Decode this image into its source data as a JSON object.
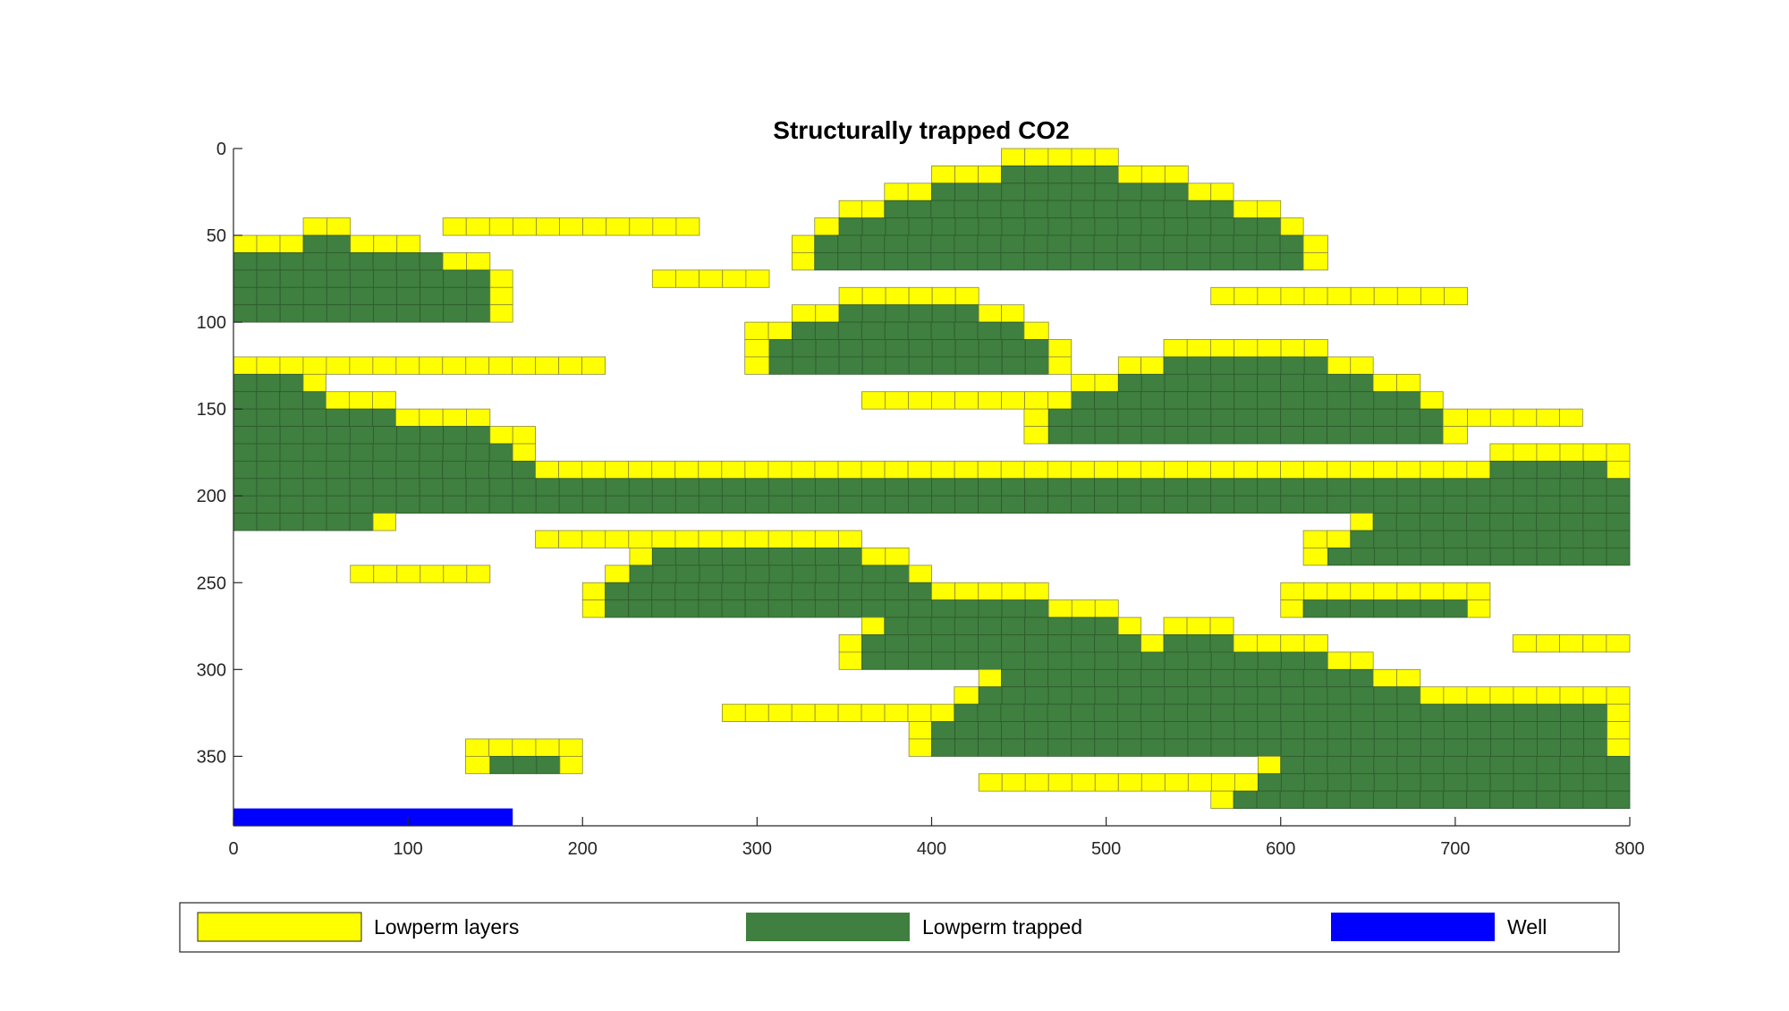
{
  "chart_data": {
    "type": "heatmap",
    "title": "Structurally trapped CO2",
    "xlabel": "",
    "ylabel": "",
    "xlim": [
      0,
      800
    ],
    "ylim": [
      0,
      380
    ],
    "y_reversed": true,
    "x_ticks": [
      0,
      100,
      200,
      300,
      400,
      500,
      600,
      700,
      800
    ],
    "y_ticks": [
      0,
      50,
      100,
      150,
      200,
      250,
      300,
      350
    ],
    "x_tick_labels": [
      "0",
      "100",
      "200",
      "300",
      "400",
      "500",
      "600",
      "700",
      "800"
    ],
    "y_tick_labels": [
      "0",
      "50",
      "100",
      "150",
      "200",
      "250",
      "300",
      "350"
    ],
    "grid": false,
    "legend_position": "bottom",
    "series": [
      {
        "name": "Lowperm layers",
        "color": "#ffff00"
      },
      {
        "name": "Lowperm trapped",
        "color": "#3f7f3f"
      },
      {
        "name": "Well",
        "color": "#0000ff"
      }
    ],
    "well": {
      "x": [
        0,
        160
      ],
      "y": [
        380,
        390
      ]
    },
    "cell_size": {
      "dx": 13.33,
      "dy": 10
    },
    "regions": [
      {
        "kind": "yellow",
        "x0": 440,
        "x1": 507,
        "y0": 0,
        "y1": 10
      },
      {
        "kind": "yellow",
        "x0": 400,
        "x1": 440,
        "y0": 10,
        "y1": 20
      },
      {
        "kind": "green",
        "x0": 440,
        "x1": 507,
        "y0": 10,
        "y1": 20
      },
      {
        "kind": "yellow",
        "x0": 507,
        "x1": 547,
        "y0": 10,
        "y1": 20
      },
      {
        "kind": "yellow",
        "x0": 373,
        "x1": 400,
        "y0": 20,
        "y1": 30
      },
      {
        "kind": "green",
        "x0": 400,
        "x1": 547,
        "y0": 20,
        "y1": 30
      },
      {
        "kind": "yellow",
        "x0": 547,
        "x1": 573,
        "y0": 20,
        "y1": 30
      },
      {
        "kind": "yellow",
        "x0": 347,
        "x1": 373,
        "y0": 30,
        "y1": 40
      },
      {
        "kind": "green",
        "x0": 373,
        "x1": 573,
        "y0": 30,
        "y1": 40
      },
      {
        "kind": "yellow",
        "x0": 573,
        "x1": 600,
        "y0": 30,
        "y1": 40
      },
      {
        "kind": "yellow",
        "x0": 333,
        "x1": 347,
        "y0": 40,
        "y1": 50
      },
      {
        "kind": "green",
        "x0": 347,
        "x1": 600,
        "y0": 40,
        "y1": 50
      },
      {
        "kind": "yellow",
        "x0": 600,
        "x1": 613,
        "y0": 40,
        "y1": 50
      },
      {
        "kind": "yellow",
        "x0": 320,
        "x1": 333,
        "y0": 50,
        "y1": 70
      },
      {
        "kind": "green",
        "x0": 333,
        "x1": 613,
        "y0": 50,
        "y1": 70
      },
      {
        "kind": "yellow",
        "x0": 613,
        "x1": 627,
        "y0": 50,
        "y1": 70
      },
      {
        "kind": "yellow",
        "x0": 40,
        "x1": 67,
        "y0": 40,
        "y1": 50
      },
      {
        "kind": "yellow",
        "x0": 0,
        "x1": 40,
        "y0": 50,
        "y1": 60
      },
      {
        "kind": "green",
        "x0": 40,
        "x1": 67,
        "y0": 50,
        "y1": 60
      },
      {
        "kind": "yellow",
        "x0": 67,
        "x1": 107,
        "y0": 50,
        "y1": 60
      },
      {
        "kind": "green",
        "x0": 0,
        "x1": 120,
        "y0": 60,
        "y1": 70
      },
      {
        "kind": "yellow",
        "x0": 120,
        "x1": 147,
        "y0": 60,
        "y1": 70
      },
      {
        "kind": "green",
        "x0": 0,
        "x1": 147,
        "y0": 70,
        "y1": 100
      },
      {
        "kind": "yellow",
        "x0": 147,
        "x1": 160,
        "y0": 70,
        "y1": 100
      },
      {
        "kind": "yellow",
        "x0": 120,
        "x1": 267,
        "y0": 40,
        "y1": 50
      },
      {
        "kind": "yellow",
        "x0": 240,
        "x1": 307,
        "y0": 70,
        "y1": 80
      },
      {
        "kind": "yellow",
        "x0": 560,
        "x1": 707,
        "y0": 80,
        "y1": 90
      },
      {
        "kind": "yellow",
        "x0": 347,
        "x1": 427,
        "y0": 80,
        "y1": 90
      },
      {
        "kind": "yellow",
        "x0": 320,
        "x1": 347,
        "y0": 90,
        "y1": 100
      },
      {
        "kind": "green",
        "x0": 347,
        "x1": 427,
        "y0": 90,
        "y1": 100
      },
      {
        "kind": "yellow",
        "x0": 427,
        "x1": 453,
        "y0": 90,
        "y1": 100
      },
      {
        "kind": "yellow",
        "x0": 293,
        "x1": 320,
        "y0": 100,
        "y1": 110
      },
      {
        "kind": "green",
        "x0": 320,
        "x1": 453,
        "y0": 100,
        "y1": 110
      },
      {
        "kind": "yellow",
        "x0": 453,
        "x1": 467,
        "y0": 100,
        "y1": 110
      },
      {
        "kind": "yellow",
        "x0": 293,
        "x1": 307,
        "y0": 110,
        "y1": 130
      },
      {
        "kind": "green",
        "x0": 307,
        "x1": 467,
        "y0": 110,
        "y1": 130
      },
      {
        "kind": "yellow",
        "x0": 467,
        "x1": 480,
        "y0": 110,
        "y1": 130
      },
      {
        "kind": "yellow",
        "x0": 0,
        "x1": 213,
        "y0": 120,
        "y1": 130
      },
      {
        "kind": "yellow",
        "x0": 533,
        "x1": 627,
        "y0": 110,
        "y1": 120
      },
      {
        "kind": "yellow",
        "x0": 507,
        "x1": 533,
        "y0": 120,
        "y1": 130
      },
      {
        "kind": "green",
        "x0": 533,
        "x1": 627,
        "y0": 120,
        "y1": 130
      },
      {
        "kind": "yellow",
        "x0": 627,
        "x1": 653,
        "y0": 120,
        "y1": 130
      },
      {
        "kind": "yellow",
        "x0": 480,
        "x1": 507,
        "y0": 130,
        "y1": 140
      },
      {
        "kind": "green",
        "x0": 507,
        "x1": 653,
        "y0": 130,
        "y1": 140
      },
      {
        "kind": "yellow",
        "x0": 653,
        "x1": 680,
        "y0": 130,
        "y1": 140
      },
      {
        "kind": "green",
        "x0": 480,
        "x1": 680,
        "y0": 140,
        "y1": 150
      },
      {
        "kind": "yellow",
        "x0": 680,
        "x1": 693,
        "y0": 140,
        "y1": 150
      },
      {
        "kind": "yellow",
        "x0": 360,
        "x1": 480,
        "y0": 140,
        "y1": 150
      },
      {
        "kind": "yellow",
        "x0": 453,
        "x1": 467,
        "y0": 150,
        "y1": 170
      },
      {
        "kind": "green",
        "x0": 467,
        "x1": 693,
        "y0": 150,
        "y1": 170
      },
      {
        "kind": "yellow",
        "x0": 693,
        "x1": 707,
        "y0": 150,
        "y1": 170
      },
      {
        "kind": "yellow",
        "x0": 707,
        "x1": 773,
        "y0": 150,
        "y1": 160
      },
      {
        "kind": "green",
        "x0": 0,
        "x1": 40,
        "y0": 130,
        "y1": 140
      },
      {
        "kind": "yellow",
        "x0": 40,
        "x1": 53,
        "y0": 130,
        "y1": 140
      },
      {
        "kind": "green",
        "x0": 0,
        "x1": 53,
        "y0": 140,
        "y1": 150
      },
      {
        "kind": "yellow",
        "x0": 53,
        "x1": 93,
        "y0": 140,
        "y1": 150
      },
      {
        "kind": "green",
        "x0": 0,
        "x1": 93,
        "y0": 150,
        "y1": 160
      },
      {
        "kind": "yellow",
        "x0": 93,
        "x1": 147,
        "y0": 150,
        "y1": 160
      },
      {
        "kind": "green",
        "x0": 0,
        "x1": 147,
        "y0": 160,
        "y1": 170
      },
      {
        "kind": "yellow",
        "x0": 147,
        "x1": 173,
        "y0": 160,
        "y1": 170
      },
      {
        "kind": "green",
        "x0": 0,
        "x1": 160,
        "y0": 170,
        "y1": 180
      },
      {
        "kind": "yellow",
        "x0": 160,
        "x1": 173,
        "y0": 170,
        "y1": 180
      },
      {
        "kind": "green",
        "x0": 0,
        "x1": 173,
        "y0": 180,
        "y1": 190
      },
      {
        "kind": "yellow",
        "x0": 173,
        "x1": 720,
        "y0": 180,
        "y1": 190
      },
      {
        "kind": "yellow",
        "x0": 720,
        "x1": 800,
        "y0": 170,
        "y1": 180
      },
      {
        "kind": "green",
        "x0": 720,
        "x1": 787,
        "y0": 180,
        "y1": 190
      },
      {
        "kind": "yellow",
        "x0": 787,
        "x1": 800,
        "y0": 180,
        "y1": 190
      },
      {
        "kind": "green",
        "x0": 0,
        "x1": 800,
        "y0": 190,
        "y1": 210
      },
      {
        "kind": "green",
        "x0": 0,
        "x1": 80,
        "y0": 210,
        "y1": 220
      },
      {
        "kind": "yellow",
        "x0": 80,
        "x1": 93,
        "y0": 210,
        "y1": 220
      },
      {
        "kind": "yellow",
        "x0": 640,
        "x1": 653,
        "y0": 210,
        "y1": 220
      },
      {
        "kind": "green",
        "x0": 653,
        "x1": 800,
        "y0": 210,
        "y1": 220
      },
      {
        "kind": "yellow",
        "x0": 613,
        "x1": 640,
        "y0": 220,
        "y1": 230
      },
      {
        "kind": "green",
        "x0": 640,
        "x1": 800,
        "y0": 220,
        "y1": 230
      },
      {
        "kind": "yellow",
        "x0": 613,
        "x1": 627,
        "y0": 230,
        "y1": 240
      },
      {
        "kind": "green",
        "x0": 627,
        "x1": 800,
        "y0": 230,
        "y1": 240
      },
      {
        "kind": "yellow",
        "x0": 173,
        "x1": 360,
        "y0": 220,
        "y1": 230
      },
      {
        "kind": "yellow",
        "x0": 67,
        "x1": 147,
        "y0": 240,
        "y1": 250
      },
      {
        "kind": "yellow",
        "x0": 227,
        "x1": 240,
        "y0": 230,
        "y1": 240
      },
      {
        "kind": "green",
        "x0": 240,
        "x1": 360,
        "y0": 230,
        "y1": 240
      },
      {
        "kind": "yellow",
        "x0": 360,
        "x1": 387,
        "y0": 230,
        "y1": 240
      },
      {
        "kind": "yellow",
        "x0": 213,
        "x1": 227,
        "y0": 240,
        "y1": 250
      },
      {
        "kind": "green",
        "x0": 227,
        "x1": 387,
        "y0": 240,
        "y1": 250
      },
      {
        "kind": "yellow",
        "x0": 387,
        "x1": 400,
        "y0": 240,
        "y1": 250
      },
      {
        "kind": "yellow",
        "x0": 200,
        "x1": 213,
        "y0": 250,
        "y1": 270
      },
      {
        "kind": "green",
        "x0": 213,
        "x1": 400,
        "y0": 250,
        "y1": 260
      },
      {
        "kind": "yellow",
        "x0": 400,
        "x1": 467,
        "y0": 250,
        "y1": 260
      },
      {
        "kind": "green",
        "x0": 213,
        "x1": 467,
        "y0": 260,
        "y1": 270
      },
      {
        "kind": "yellow",
        "x0": 467,
        "x1": 507,
        "y0": 260,
        "y1": 270
      },
      {
        "kind": "yellow",
        "x0": 600,
        "x1": 720,
        "y0": 250,
        "y1": 260
      },
      {
        "kind": "yellow",
        "x0": 600,
        "x1": 613,
        "y0": 260,
        "y1": 270
      },
      {
        "kind": "green",
        "x0": 613,
        "x1": 707,
        "y0": 260,
        "y1": 270
      },
      {
        "kind": "yellow",
        "x0": 707,
        "x1": 720,
        "y0": 260,
        "y1": 270
      },
      {
        "kind": "yellow",
        "x0": 360,
        "x1": 373,
        "y0": 270,
        "y1": 280
      },
      {
        "kind": "green",
        "x0": 373,
        "x1": 507,
        "y0": 270,
        "y1": 280
      },
      {
        "kind": "yellow",
        "x0": 507,
        "x1": 520,
        "y0": 270,
        "y1": 280
      },
      {
        "kind": "yellow",
        "x0": 533,
        "x1": 573,
        "y0": 270,
        "y1": 280
      },
      {
        "kind": "yellow",
        "x0": 347,
        "x1": 360,
        "y0": 280,
        "y1": 300
      },
      {
        "kind": "green",
        "x0": 360,
        "x1": 520,
        "y0": 280,
        "y1": 290
      },
      {
        "kind": "yellow",
        "x0": 520,
        "x1": 533,
        "y0": 280,
        "y1": 290
      },
      {
        "kind": "green",
        "x0": 533,
        "x1": 573,
        "y0": 280,
        "y1": 290
      },
      {
        "kind": "yellow",
        "x0": 573,
        "x1": 627,
        "y0": 280,
        "y1": 290
      },
      {
        "kind": "yellow",
        "x0": 733,
        "x1": 800,
        "y0": 280,
        "y1": 290
      },
      {
        "kind": "green",
        "x0": 360,
        "x1": 627,
        "y0": 290,
        "y1": 300
      },
      {
        "kind": "yellow",
        "x0": 627,
        "x1": 653,
        "y0": 290,
        "y1": 300
      },
      {
        "kind": "yellow",
        "x0": 427,
        "x1": 440,
        "y0": 300,
        "y1": 310
      },
      {
        "kind": "green",
        "x0": 440,
        "x1": 653,
        "y0": 300,
        "y1": 310
      },
      {
        "kind": "yellow",
        "x0": 653,
        "x1": 680,
        "y0": 300,
        "y1": 310
      },
      {
        "kind": "yellow",
        "x0": 413,
        "x1": 427,
        "y0": 310,
        "y1": 320
      },
      {
        "kind": "green",
        "x0": 427,
        "x1": 680,
        "y0": 310,
        "y1": 320
      },
      {
        "kind": "yellow",
        "x0": 680,
        "x1": 800,
        "y0": 310,
        "y1": 320
      },
      {
        "kind": "yellow",
        "x0": 280,
        "x1": 413,
        "y0": 320,
        "y1": 330
      },
      {
        "kind": "green",
        "x0": 413,
        "x1": 787,
        "y0": 320,
        "y1": 330
      },
      {
        "kind": "yellow",
        "x0": 787,
        "x1": 800,
        "y0": 320,
        "y1": 330
      },
      {
        "kind": "yellow",
        "x0": 387,
        "x1": 400,
        "y0": 330,
        "y1": 350
      },
      {
        "kind": "green",
        "x0": 400,
        "x1": 787,
        "y0": 330,
        "y1": 350
      },
      {
        "kind": "yellow",
        "x0": 787,
        "x1": 800,
        "y0": 330,
        "y1": 350
      },
      {
        "kind": "yellow",
        "x0": 133,
        "x1": 200,
        "y0": 340,
        "y1": 350
      },
      {
        "kind": "yellow",
        "x0": 133,
        "x1": 147,
        "y0": 350,
        "y1": 360
      },
      {
        "kind": "green",
        "x0": 147,
        "x1": 187,
        "y0": 350,
        "y1": 360
      },
      {
        "kind": "yellow",
        "x0": 187,
        "x1": 200,
        "y0": 350,
        "y1": 360
      },
      {
        "kind": "yellow",
        "x0": 587,
        "x1": 600,
        "y0": 350,
        "y1": 360
      },
      {
        "kind": "green",
        "x0": 600,
        "x1": 800,
        "y0": 350,
        "y1": 360
      },
      {
        "kind": "yellow",
        "x0": 427,
        "x1": 587,
        "y0": 360,
        "y1": 370
      },
      {
        "kind": "green",
        "x0": 587,
        "x1": 800,
        "y0": 360,
        "y1": 370
      },
      {
        "kind": "yellow",
        "x0": 560,
        "x1": 573,
        "y0": 370,
        "y1": 380
      },
      {
        "kind": "green",
        "x0": 573,
        "x1": 800,
        "y0": 370,
        "y1": 380
      }
    ]
  },
  "legend": {
    "items": [
      {
        "label": "Lowperm layers",
        "color": "#ffff00"
      },
      {
        "label": "Lowperm trapped",
        "color": "#3f7f3f"
      },
      {
        "label": "Well",
        "color": "#0000ff"
      }
    ]
  }
}
